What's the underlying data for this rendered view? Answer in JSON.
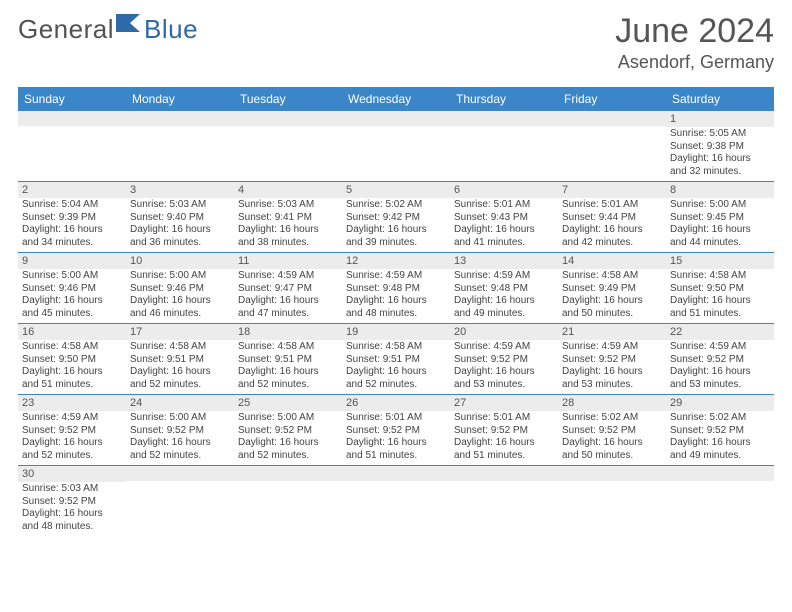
{
  "brand": {
    "part1": "General",
    "part2": "Blue"
  },
  "title": "June 2024",
  "location": "Asendorf, Germany",
  "colors": {
    "header_bg": "#3a86c8",
    "header_fg": "#ffffff",
    "daynum_bg": "#ececec",
    "rule": "#3a86c8",
    "text": "#444444",
    "title": "#555555"
  },
  "typography": {
    "title_fontsize": 34,
    "location_fontsize": 18,
    "weekday_fontsize": 12,
    "daynum_fontsize": 11,
    "body_fontsize": 10
  },
  "weekdays": [
    "Sunday",
    "Monday",
    "Tuesday",
    "Wednesday",
    "Thursday",
    "Friday",
    "Saturday"
  ],
  "weeks": [
    [
      {
        "n": "",
        "sunrise": "",
        "sunset": "",
        "day_h": "",
        "day_m": ""
      },
      {
        "n": "",
        "sunrise": "",
        "sunset": "",
        "day_h": "",
        "day_m": ""
      },
      {
        "n": "",
        "sunrise": "",
        "sunset": "",
        "day_h": "",
        "day_m": ""
      },
      {
        "n": "",
        "sunrise": "",
        "sunset": "",
        "day_h": "",
        "day_m": ""
      },
      {
        "n": "",
        "sunrise": "",
        "sunset": "",
        "day_h": "",
        "day_m": ""
      },
      {
        "n": "",
        "sunrise": "",
        "sunset": "",
        "day_h": "",
        "day_m": ""
      },
      {
        "n": "1",
        "sunrise": "5:05 AM",
        "sunset": "9:38 PM",
        "day_h": "16",
        "day_m": "32"
      }
    ],
    [
      {
        "n": "2",
        "sunrise": "5:04 AM",
        "sunset": "9:39 PM",
        "day_h": "16",
        "day_m": "34"
      },
      {
        "n": "3",
        "sunrise": "5:03 AM",
        "sunset": "9:40 PM",
        "day_h": "16",
        "day_m": "36"
      },
      {
        "n": "4",
        "sunrise": "5:03 AM",
        "sunset": "9:41 PM",
        "day_h": "16",
        "day_m": "38"
      },
      {
        "n": "5",
        "sunrise": "5:02 AM",
        "sunset": "9:42 PM",
        "day_h": "16",
        "day_m": "39"
      },
      {
        "n": "6",
        "sunrise": "5:01 AM",
        "sunset": "9:43 PM",
        "day_h": "16",
        "day_m": "41"
      },
      {
        "n": "7",
        "sunrise": "5:01 AM",
        "sunset": "9:44 PM",
        "day_h": "16",
        "day_m": "42"
      },
      {
        "n": "8",
        "sunrise": "5:00 AM",
        "sunset": "9:45 PM",
        "day_h": "16",
        "day_m": "44"
      }
    ],
    [
      {
        "n": "9",
        "sunrise": "5:00 AM",
        "sunset": "9:46 PM",
        "day_h": "16",
        "day_m": "45"
      },
      {
        "n": "10",
        "sunrise": "5:00 AM",
        "sunset": "9:46 PM",
        "day_h": "16",
        "day_m": "46"
      },
      {
        "n": "11",
        "sunrise": "4:59 AM",
        "sunset": "9:47 PM",
        "day_h": "16",
        "day_m": "47"
      },
      {
        "n": "12",
        "sunrise": "4:59 AM",
        "sunset": "9:48 PM",
        "day_h": "16",
        "day_m": "48"
      },
      {
        "n": "13",
        "sunrise": "4:59 AM",
        "sunset": "9:48 PM",
        "day_h": "16",
        "day_m": "49"
      },
      {
        "n": "14",
        "sunrise": "4:58 AM",
        "sunset": "9:49 PM",
        "day_h": "16",
        "day_m": "50"
      },
      {
        "n": "15",
        "sunrise": "4:58 AM",
        "sunset": "9:50 PM",
        "day_h": "16",
        "day_m": "51"
      }
    ],
    [
      {
        "n": "16",
        "sunrise": "4:58 AM",
        "sunset": "9:50 PM",
        "day_h": "16",
        "day_m": "51"
      },
      {
        "n": "17",
        "sunrise": "4:58 AM",
        "sunset": "9:51 PM",
        "day_h": "16",
        "day_m": "52"
      },
      {
        "n": "18",
        "sunrise": "4:58 AM",
        "sunset": "9:51 PM",
        "day_h": "16",
        "day_m": "52"
      },
      {
        "n": "19",
        "sunrise": "4:58 AM",
        "sunset": "9:51 PM",
        "day_h": "16",
        "day_m": "52"
      },
      {
        "n": "20",
        "sunrise": "4:59 AM",
        "sunset": "9:52 PM",
        "day_h": "16",
        "day_m": "53"
      },
      {
        "n": "21",
        "sunrise": "4:59 AM",
        "sunset": "9:52 PM",
        "day_h": "16",
        "day_m": "53"
      },
      {
        "n": "22",
        "sunrise": "4:59 AM",
        "sunset": "9:52 PM",
        "day_h": "16",
        "day_m": "53"
      }
    ],
    [
      {
        "n": "23",
        "sunrise": "4:59 AM",
        "sunset": "9:52 PM",
        "day_h": "16",
        "day_m": "52"
      },
      {
        "n": "24",
        "sunrise": "5:00 AM",
        "sunset": "9:52 PM",
        "day_h": "16",
        "day_m": "52"
      },
      {
        "n": "25",
        "sunrise": "5:00 AM",
        "sunset": "9:52 PM",
        "day_h": "16",
        "day_m": "52"
      },
      {
        "n": "26",
        "sunrise": "5:01 AM",
        "sunset": "9:52 PM",
        "day_h": "16",
        "day_m": "51"
      },
      {
        "n": "27",
        "sunrise": "5:01 AM",
        "sunset": "9:52 PM",
        "day_h": "16",
        "day_m": "51"
      },
      {
        "n": "28",
        "sunrise": "5:02 AM",
        "sunset": "9:52 PM",
        "day_h": "16",
        "day_m": "50"
      },
      {
        "n": "29",
        "sunrise": "5:02 AM",
        "sunset": "9:52 PM",
        "day_h": "16",
        "day_m": "49"
      }
    ],
    [
      {
        "n": "30",
        "sunrise": "5:03 AM",
        "sunset": "9:52 PM",
        "day_h": "16",
        "day_m": "48"
      },
      {
        "n": "",
        "sunrise": "",
        "sunset": "",
        "day_h": "",
        "day_m": ""
      },
      {
        "n": "",
        "sunrise": "",
        "sunset": "",
        "day_h": "",
        "day_m": ""
      },
      {
        "n": "",
        "sunrise": "",
        "sunset": "",
        "day_h": "",
        "day_m": ""
      },
      {
        "n": "",
        "sunrise": "",
        "sunset": "",
        "day_h": "",
        "day_m": ""
      },
      {
        "n": "",
        "sunrise": "",
        "sunset": "",
        "day_h": "",
        "day_m": ""
      },
      {
        "n": "",
        "sunrise": "",
        "sunset": "",
        "day_h": "",
        "day_m": ""
      }
    ]
  ],
  "labels": {
    "sunrise_prefix": "Sunrise: ",
    "sunset_prefix": "Sunset: ",
    "daylight_prefix": "Daylight: ",
    "hours_word": " hours",
    "and_word": "and ",
    "minutes_word": " minutes."
  }
}
